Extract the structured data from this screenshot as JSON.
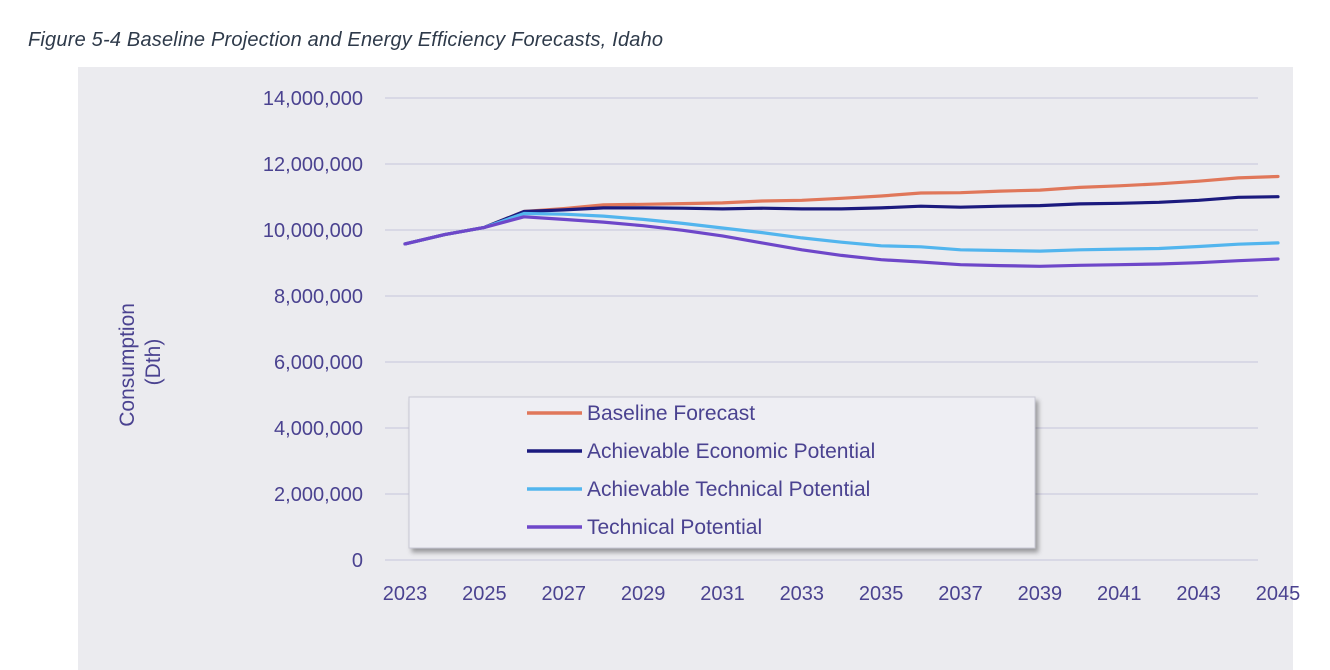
{
  "caption": "Figure 5-4 Baseline Projection and Energy Efficiency Forecasts, Idaho",
  "chart_data": {
    "type": "line",
    "title": "",
    "ylabel_line1": "Consumption",
    "ylabel_line2": "(Dth)",
    "xlabel": "",
    "x": [
      2023,
      2024,
      2025,
      2026,
      2027,
      2028,
      2029,
      2030,
      2031,
      2032,
      2033,
      2034,
      2035,
      2036,
      2037,
      2038,
      2039,
      2040,
      2041,
      2042,
      2043,
      2044,
      2045
    ],
    "xticks": [
      "2023",
      "2025",
      "2027",
      "2029",
      "2031",
      "2033",
      "2035",
      "2037",
      "2039",
      "2041",
      "2043",
      "2045"
    ],
    "yticks": [
      "0",
      "2,000,000",
      "4,000,000",
      "6,000,000",
      "8,000,000",
      "10,000,000",
      "12,000,000",
      "14,000,000"
    ],
    "ylim": [
      0,
      14000000
    ],
    "grid": true,
    "series": [
      {
        "name": "Baseline Forecast",
        "color": "#e0775a",
        "values": [
          9580000,
          9860000,
          10080000,
          10560000,
          10650000,
          10760000,
          10780000,
          10800000,
          10820000,
          10880000,
          10900000,
          10960000,
          11030000,
          11120000,
          11130000,
          11180000,
          11210000,
          11290000,
          11340000,
          11400000,
          11480000,
          11580000,
          11620000
        ]
      },
      {
        "name": "Achievable Economic Potential",
        "color": "#1b1a7e",
        "values": [
          9580000,
          9860000,
          10080000,
          10560000,
          10610000,
          10670000,
          10670000,
          10660000,
          10640000,
          10660000,
          10640000,
          10640000,
          10670000,
          10720000,
          10690000,
          10720000,
          10740000,
          10790000,
          10810000,
          10840000,
          10900000,
          10990000,
          11010000
        ]
      },
      {
        "name": "Achievable Technical Potential",
        "color": "#52b5ee",
        "values": [
          9580000,
          9860000,
          10080000,
          10500000,
          10480000,
          10420000,
          10320000,
          10200000,
          10060000,
          9920000,
          9760000,
          9630000,
          9520000,
          9490000,
          9400000,
          9380000,
          9360000,
          9400000,
          9420000,
          9440000,
          9500000,
          9570000,
          9610000
        ]
      },
      {
        "name": "Technical Potential",
        "color": "#6e47c9",
        "values": [
          9580000,
          9860000,
          10080000,
          10400000,
          10320000,
          10240000,
          10130000,
          9990000,
          9820000,
          9610000,
          9400000,
          9230000,
          9100000,
          9030000,
          8950000,
          8920000,
          8900000,
          8930000,
          8950000,
          8970000,
          9010000,
          9070000,
          9120000
        ]
      }
    ]
  }
}
